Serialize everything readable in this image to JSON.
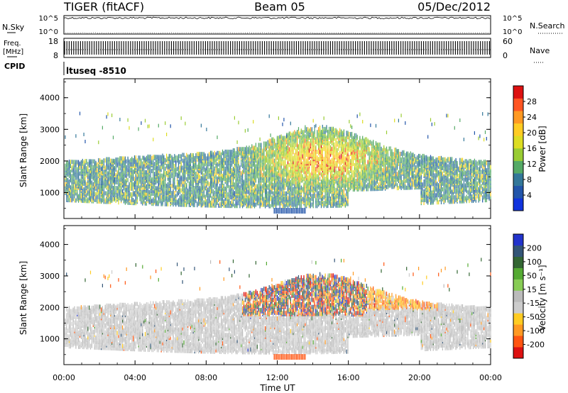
{
  "header": {
    "station": "TIGER (fitACF)",
    "beam": "Beam 05",
    "date": "05/Dec/2012"
  },
  "top_panels": {
    "nsky_label": "N.Sky",
    "nsky_ticks": [
      "10^5",
      "10^0"
    ],
    "nsearch_label": "N.Search",
    "nsearch_ticks": [
      "10^5",
      "10^0"
    ],
    "freq_label_1": "Freq.",
    "freq_label_2": "[MHz]",
    "freq_ticks": [
      "18",
      "8"
    ],
    "nave_label": "Nave",
    "nave_ticks": [
      "60",
      "0"
    ],
    "cpid_label": "CPID",
    "cpid_value": "ltuseq -8510"
  },
  "colors": {
    "power_scale": [
      "#1133dd",
      "#2255aa",
      "#337799",
      "#55aa66",
      "#99cc33",
      "#dddd22",
      "#ffcc22",
      "#ff9922",
      "#ff5522",
      "#dd1111"
    ],
    "velocity_scale": [
      "#2233cc",
      "#335577",
      "#336633",
      "#55aa33",
      "#88cc55",
      "#bbbbbb",
      "#cccccc",
      "#ffcc22",
      "#ff9922",
      "#ff5511",
      "#dd1111"
    ]
  },
  "chart_data": [
    {
      "type": "heatmap",
      "panel": "power",
      "ylabel": "Slant Range [km]",
      "ylim": [
        180,
        4600
      ],
      "yticks": [
        "4000",
        "3000",
        "2000",
        "1000"
      ],
      "xlim": [
        "00:00",
        "24:00"
      ],
      "colorbar_label": "Power [dB]",
      "colorbar_ticks": [
        "28",
        "24",
        "20",
        "16",
        "12",
        "8",
        "4"
      ],
      "colorbar_range": [
        0,
        32
      ],
      "description_values": [
        {
          "time_h": 0.0,
          "range_km": [
            700,
            2000
          ],
          "power_db": 8
        },
        {
          "time_h": 9.0,
          "range_km": [
            800,
            2300
          ],
          "power_db": 14
        },
        {
          "time_h": 14.5,
          "range_km": [
            1200,
            2700
          ],
          "power_db": 22
        },
        {
          "time_h": 18.0,
          "range_km": [
            1400,
            2600
          ],
          "power_db": 10
        },
        {
          "time_h": 24.0,
          "range_km": [
            700,
            2000
          ],
          "power_db": 6
        }
      ]
    },
    {
      "type": "heatmap",
      "panel": "velocity",
      "ylabel": "Slant Range [km]",
      "ylim": [
        180,
        4600
      ],
      "yticks": [
        "4000",
        "3000",
        "2000",
        "1000"
      ],
      "xlabel": "Time UT",
      "xticks": [
        "00:00",
        "04:00",
        "08:00",
        "12:00",
        "16:00",
        "20:00",
        "00:00"
      ],
      "xlim": [
        "00:00",
        "24:00"
      ],
      "colorbar_label": "Velocity [m s⁻¹]",
      "colorbar_ticks": [
        "200",
        "100",
        "50",
        "15",
        "-15",
        "-50",
        "-100",
        "-200"
      ],
      "colorbar_range": [
        -250,
        250
      ],
      "description_values": [
        {
          "time_h": 0.0,
          "range_km": [
            700,
            2000
          ],
          "velocity_ms": 0
        },
        {
          "time_h": 12.0,
          "range_km": [
            1800,
            2600
          ],
          "velocity_ms": 150
        },
        {
          "time_h": 14.5,
          "range_km": [
            1800,
            3000
          ],
          "velocity_ms": -150
        },
        {
          "time_h": 24.0,
          "range_km": [
            700,
            2000
          ],
          "velocity_ms": 0
        }
      ]
    }
  ]
}
